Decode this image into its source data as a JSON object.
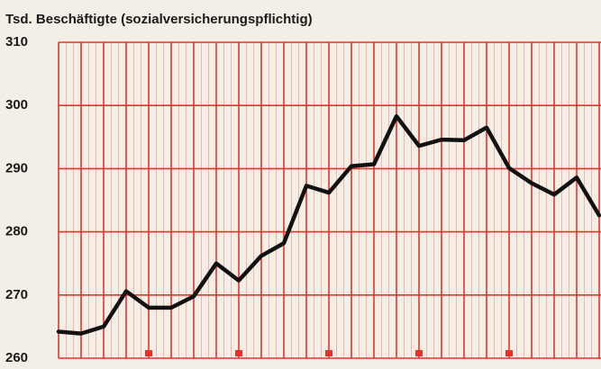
{
  "chart_data": {
    "type": "line",
    "title": "Tsd. Beschäftigte (sozialversicherungspflichtig)",
    "categories": [
      null,
      null,
      null,
      null,
      null,
      null,
      null,
      null,
      null,
      null,
      null,
      null,
      null,
      null,
      null,
      null,
      null,
      null,
      null,
      null,
      null,
      null,
      null,
      null,
      null
    ],
    "values": [
      264.2,
      263.9,
      265,
      270.6,
      268,
      268,
      269.8,
      275,
      272.3,
      276.2,
      278.2,
      287.3,
      286.2,
      290.4,
      290.7,
      298.3,
      293.6,
      294.6,
      294.5,
      296.5,
      290.1,
      287.7,
      285.9,
      288.6,
      282.6
    ],
    "color": "#111111",
    "grid_color": "#e8322c",
    "ylim": [
      260,
      310
    ],
    "yticks": [
      260,
      270,
      280,
      290,
      300,
      310
    ],
    "grid": true
  }
}
